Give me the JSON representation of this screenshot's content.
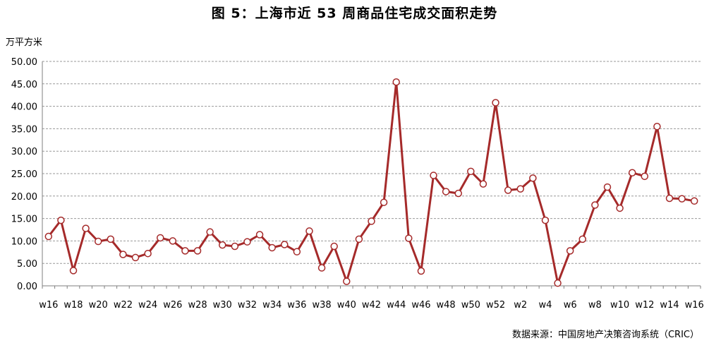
{
  "chart_data": {
    "type": "line",
    "title": "图 5：上海市近 53 周商品住宅成交面积走势",
    "ylabel": "万平方米",
    "xlabel": "",
    "ylim": [
      0,
      50
    ],
    "yticks": [
      "0.00",
      "5.00",
      "10.00",
      "15.00",
      "20.00",
      "25.00",
      "30.00",
      "35.00",
      "40.00",
      "45.00",
      "50.00"
    ],
    "grid": true,
    "x": [
      "w16",
      "w17",
      "w18",
      "w19",
      "w20",
      "w21",
      "w22",
      "w23",
      "w24",
      "w25",
      "w26",
      "w27",
      "w28",
      "w29",
      "w30",
      "w31",
      "w32",
      "w33",
      "w34",
      "w35",
      "w36",
      "w37",
      "w38",
      "w39",
      "w40",
      "w41",
      "w42",
      "w43",
      "w44",
      "w45",
      "w46",
      "w47",
      "w48",
      "w49",
      "w50",
      "w51",
      "w52",
      "w1",
      "w2",
      "w3",
      "w4",
      "w5",
      "w6",
      "w7",
      "w8",
      "w9",
      "w10",
      "w11",
      "w12",
      "w13",
      "w14",
      "w15",
      "w16"
    ],
    "x_tick_labels": [
      "w16",
      "",
      "w18",
      "",
      "w20",
      "",
      "w22",
      "",
      "w24",
      "",
      "w26",
      "",
      "w28",
      "",
      "w30",
      "",
      "w32",
      "",
      "w34",
      "",
      "w36",
      "",
      "w38",
      "",
      "w40",
      "",
      "w42",
      "",
      "w44",
      "",
      "w46",
      "",
      "w48",
      "",
      "w50",
      "",
      "w52",
      "",
      "w2",
      "",
      "w4",
      "",
      "w6",
      "",
      "w8",
      "",
      "w10",
      "",
      "w12",
      "",
      "w14",
      "",
      "w16"
    ],
    "series": [
      {
        "values": [
          11.0,
          14.6,
          3.4,
          12.8,
          9.9,
          10.4,
          7.0,
          6.3,
          7.2,
          10.7,
          10.0,
          7.8,
          7.8,
          12.0,
          9.1,
          8.8,
          9.8,
          11.4,
          8.5,
          9.2,
          7.6,
          12.2,
          4.0,
          8.8,
          1.0,
          10.4,
          14.4,
          18.6,
          45.4,
          10.6,
          3.3,
          24.6,
          21.0,
          20.6,
          25.5,
          22.7,
          40.8,
          21.3,
          21.6,
          24.0,
          14.6,
          0.6,
          7.8,
          10.4,
          18.0,
          22.0,
          17.3,
          25.2,
          24.4,
          35.5,
          19.5,
          19.4,
          18.9
        ],
        "color": "#a52a2a"
      }
    ]
  },
  "source_note": "数据来源：中国房地产决策咨询系统（CRIC）",
  "colors": {
    "line": "#a52a2a",
    "grid": "#999999",
    "axis": "#7f7f7f",
    "marker_fill": "#ffffff"
  }
}
